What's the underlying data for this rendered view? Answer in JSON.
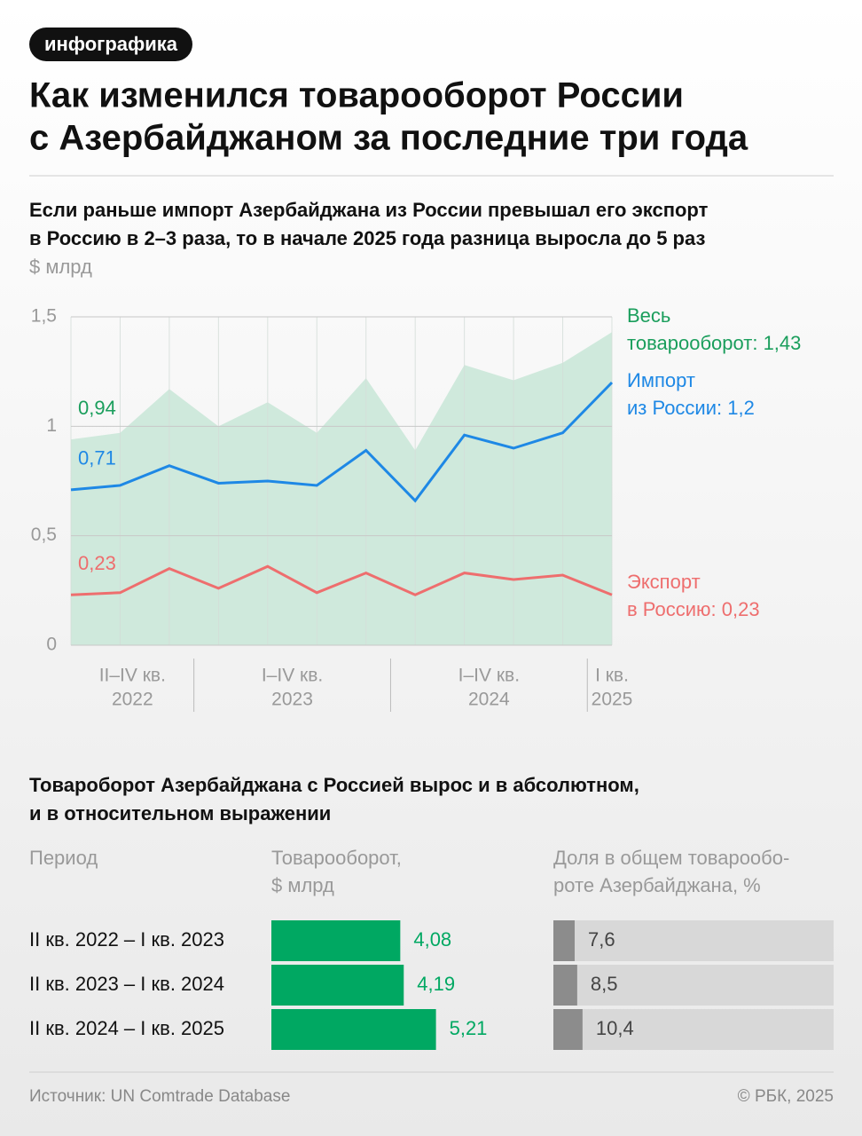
{
  "header": {
    "tag": "инфографика",
    "title": [
      "Как изменился товарооборот России",
      "с Азербайджаном за последние три года"
    ],
    "source": "Источник: UN Comtrade Database",
    "copyright": "© РБК, 2025"
  },
  "chart_data": [
    {
      "type": "line",
      "title": [
        "Если раньше импорт Азербайджана из России превышал его экспорт",
        "в Россию в 2–3 раза, то в начале 2025 года разница выросла до 5 раз"
      ],
      "unit": "$ млрд",
      "categories": [
        [
          "II–IV кв.",
          "2022"
        ],
        null,
        null,
        [
          "I–IV кв.",
          "2023"
        ],
        null,
        null,
        null,
        [
          "I–IV кв.",
          "2024"
        ],
        null,
        null,
        null,
        [
          "I кв.",
          "2025"
        ]
      ],
      "ylim": [
        0,
        1.5
      ],
      "yticks": [
        0,
        {
          "value": 0.5,
          "label": "0,5"
        },
        1,
        {
          "value": 1.5,
          "label": "1,5"
        }
      ],
      "grid": true,
      "series": [
        {
          "name": [
            "Весь",
            "товарооборот: 1,43"
          ],
          "color": "#1a9e5c",
          "area": true,
          "fill": "#cfe9dc",
          "values": [
            0.94,
            0.97,
            1.17,
            1.0,
            1.11,
            0.97,
            1.22,
            0.89,
            1.28,
            1.21,
            1.29,
            1.43
          ],
          "value_labels": [
            "0,94",
            null,
            null,
            null,
            null,
            null,
            null,
            null,
            null,
            null,
            null,
            null
          ]
        },
        {
          "name": [
            "Импорт",
            "из России: 1,2"
          ],
          "color": "#1e88e5",
          "values": [
            0.71,
            0.73,
            0.82,
            0.74,
            0.75,
            0.73,
            0.89,
            0.66,
            0.96,
            0.9,
            0.97,
            1.2
          ],
          "value_labels": [
            "0,71",
            null,
            null,
            null,
            null,
            null,
            null,
            null,
            null,
            null,
            null,
            null
          ]
        },
        {
          "name": [
            "Экспорт",
            "в Россию: 0,23"
          ],
          "color": "#ee6e6e",
          "values": [
            0.23,
            0.24,
            0.35,
            0.26,
            0.36,
            0.24,
            0.33,
            0.23,
            0.33,
            0.3,
            0.32,
            0.23
          ],
          "value_labels": [
            "0,23",
            null,
            null,
            null,
            null,
            null,
            null,
            null,
            null,
            null,
            null,
            null
          ]
        }
      ]
    },
    {
      "type": "bar",
      "title": [
        "Товароборот Азербайджана с Россией вырос и в абсолютном,",
        "и в относительном выражении"
      ],
      "columns": [
        [
          "Период"
        ],
        [
          "Товарооборот,",
          "$ млрд"
        ],
        [
          "Доля в общем товарообо-",
          "роте Азербайджана, %"
        ]
      ],
      "categories": [
        "II кв. 2022 – I кв. 2023",
        "II кв. 2023 – I кв. 2024",
        "II кв. 2024 – I кв. 2025"
      ],
      "series": [
        {
          "color": "#00a862",
          "label_color": "#00a862",
          "xlim": [
            0,
            8
          ],
          "values": [
            4.08,
            4.19,
            5.21
          ],
          "value_labels": [
            "4,08",
            "4,19",
            "5,21"
          ]
        },
        {
          "color": "#8c8c8c",
          "label_color": "#444",
          "track": "#d8d8d8",
          "xlim": [
            0,
            100
          ],
          "values": [
            7.6,
            8.5,
            10.4
          ],
          "value_labels": [
            "7,6",
            "8,5",
            "10,4"
          ]
        }
      ]
    }
  ]
}
